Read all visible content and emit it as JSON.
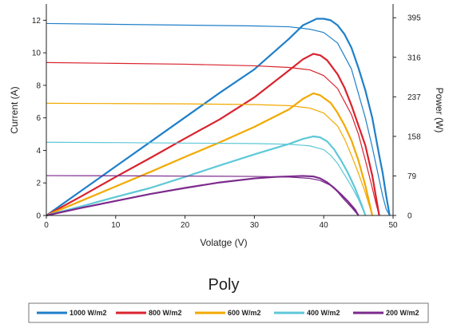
{
  "chart_data": {
    "type": "line",
    "title": "Poly",
    "xlabel": "Volatge (V)",
    "ylabel_left": "Current (A)",
    "ylabel_right": "Power (W)",
    "xlim": [
      0,
      50
    ],
    "ylim_left": [
      0,
      13
    ],
    "ylim_right": [
      0,
      422.5
    ],
    "x_ticks": [
      "0",
      "10",
      "20",
      "30",
      "40",
      "50"
    ],
    "y_left_ticks": [
      "0",
      "2",
      "4",
      "6",
      "8",
      "10",
      "12"
    ],
    "y_right_ticks": [
      "0",
      "79",
      "158",
      "237",
      "316",
      "395"
    ],
    "y_right_tick_values": [
      0,
      79,
      158,
      237,
      316,
      395
    ],
    "grid": false,
    "legend_position": "bottom",
    "series": [
      {
        "name": "1000 W/m2",
        "color": "#1f7fc9",
        "current": {
          "x": [
            0,
            10,
            20,
            30,
            35,
            38,
            40,
            42,
            44,
            46,
            47,
            48,
            48.5,
            49,
            49.5
          ],
          "y": [
            11.8,
            11.75,
            11.7,
            11.65,
            11.6,
            11.45,
            11.25,
            10.6,
            9.0,
            6.0,
            4.2,
            2.2,
            1.2,
            0.4,
            0
          ]
        },
        "power": {
          "x": [
            0,
            5,
            10,
            15,
            20,
            25,
            30,
            35,
            37,
            39,
            40,
            41,
            42,
            43,
            44,
            45,
            46,
            47,
            48,
            48.5,
            49,
            49.5
          ],
          "y": [
            0,
            49,
            98,
            147,
            196,
            245,
            292,
            353,
            380,
            393,
            393,
            390,
            380,
            362,
            335,
            295,
            250,
            195,
            120,
            85,
            40,
            0
          ]
        }
      },
      {
        "name": "800 W/m2",
        "color": "#d9232e",
        "current": {
          "x": [
            0,
            10,
            20,
            30,
            35,
            38,
            40,
            42,
            44,
            45,
            46,
            47,
            47.5,
            48
          ],
          "y": [
            9.4,
            9.35,
            9.3,
            9.2,
            9.1,
            8.95,
            8.6,
            7.8,
            6.2,
            5.0,
            3.4,
            1.7,
            0.8,
            0
          ]
        },
        "power": {
          "x": [
            0,
            5,
            10,
            15,
            20,
            25,
            30,
            35,
            37,
            38.5,
            39.5,
            40.5,
            42,
            43,
            44,
            45,
            46,
            47,
            47.5,
            48
          ],
          "y": [
            0,
            38,
            77,
            115,
            154,
            192,
            236,
            290,
            312,
            323,
            320,
            310,
            282,
            255,
            220,
            180,
            140,
            80,
            40,
            0
          ]
        }
      },
      {
        "name": "600 W/m2",
        "color": "#f2a900",
        "current": {
          "x": [
            0,
            10,
            20,
            30,
            35,
            38,
            40,
            42,
            43,
            44,
            45,
            46,
            46.5,
            47
          ],
          "y": [
            6.9,
            6.88,
            6.86,
            6.82,
            6.75,
            6.6,
            6.3,
            5.5,
            4.7,
            3.7,
            2.6,
            1.4,
            0.7,
            0
          ]
        },
        "power": {
          "x": [
            0,
            5,
            10,
            15,
            20,
            25,
            30,
            35,
            37,
            38.5,
            39.5,
            41,
            42,
            43,
            44,
            45,
            46,
            46.5,
            47
          ],
          "y": [
            0,
            29,
            58,
            87,
            117,
            146,
            177,
            212,
            233,
            244,
            240,
            225,
            205,
            180,
            150,
            110,
            60,
            30,
            0
          ]
        }
      },
      {
        "name": "400 W/m2",
        "color": "#5ec8d8",
        "current": {
          "x": [
            0,
            10,
            20,
            30,
            35,
            38,
            40,
            41,
            42,
            43,
            44,
            45,
            45.5,
            46
          ],
          "y": [
            4.5,
            4.48,
            4.45,
            4.42,
            4.38,
            4.28,
            4.05,
            3.7,
            3.2,
            2.5,
            1.8,
            1.0,
            0.5,
            0
          ]
        },
        "power": {
          "x": [
            0,
            5,
            10,
            15,
            20,
            25,
            30,
            35,
            37,
            38.5,
            39.5,
            40.5,
            41.5,
            42.5,
            43.5,
            44.5,
            45.5,
            46
          ],
          "y": [
            0,
            18,
            37,
            55,
            77,
            100,
            122,
            143,
            153,
            158,
            156,
            148,
            132,
            110,
            85,
            55,
            20,
            0
          ]
        }
      },
      {
        "name": "200 W/m2",
        "color": "#7b2a8c",
        "current": {
          "x": [
            0,
            10,
            20,
            30,
            35,
            38,
            39.5,
            41,
            42,
            43,
            44,
            45
          ],
          "y": [
            2.45,
            2.44,
            2.42,
            2.4,
            2.36,
            2.28,
            2.15,
            1.85,
            1.45,
            0.95,
            0.5,
            0
          ]
        },
        "power": {
          "x": [
            0,
            5,
            10,
            15,
            20,
            25,
            30,
            33,
            35,
            37,
            38.5,
            39.5,
            40.5,
            41.5,
            42.5,
            43.5,
            44.5,
            45
          ],
          "y": [
            0,
            15,
            29,
            43,
            55,
            66,
            74,
            77,
            78,
            79,
            78,
            74,
            66,
            55,
            42,
            28,
            12,
            0
          ]
        }
      }
    ]
  }
}
